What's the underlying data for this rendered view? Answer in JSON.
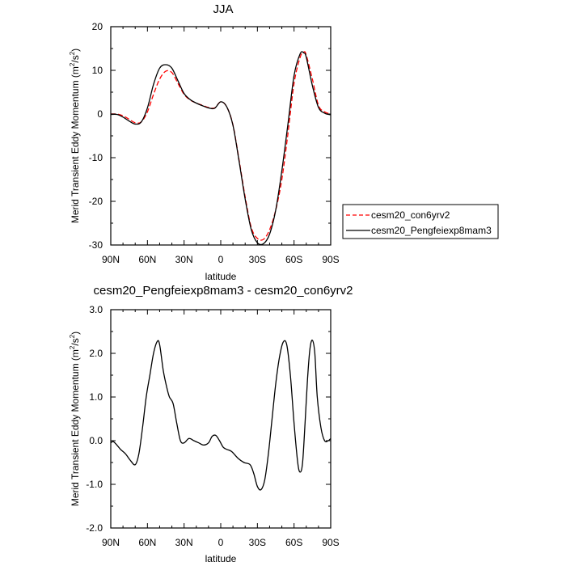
{
  "chart_data": [
    {
      "type": "line",
      "title": "JJA",
      "xlabel": "latitude",
      "ylabel_main": "Merid Transient Eddy Momentum (m",
      "ylabel_sup1": "2",
      "ylabel_mid": "/s",
      "ylabel_sup2": "2",
      "ylabel_end": ")",
      "xlim": [
        -90,
        90
      ],
      "ylim": [
        -30,
        20
      ],
      "xticks": [
        {
          "v": -90,
          "label": "90N"
        },
        {
          "v": -60,
          "label": "60N"
        },
        {
          "v": -30,
          "label": "30N"
        },
        {
          "v": 0,
          "label": "0"
        },
        {
          "v": 30,
          "label": "30S"
        },
        {
          "v": 60,
          "label": "60S"
        },
        {
          "v": 90,
          "label": "90S"
        }
      ],
      "yticks": [
        {
          "v": -30,
          "label": "-30"
        },
        {
          "v": -20,
          "label": "-20"
        },
        {
          "v": -10,
          "label": "-10"
        },
        {
          "v": 0,
          "label": "0"
        },
        {
          "v": 10,
          "label": "10"
        },
        {
          "v": 20,
          "label": "20"
        }
      ],
      "legend": {
        "placement": "right"
      },
      "series": [
        {
          "name": "cesm20_con6yrv2",
          "color": "#ff0000",
          "dash": true,
          "x": [
            -90,
            -85,
            -80,
            -75,
            -70,
            -65,
            -60,
            -55,
            -50,
            -45,
            -40,
            -35,
            -30,
            -25,
            -20,
            -15,
            -10,
            -5,
            0,
            5,
            10,
            15,
            20,
            25,
            30,
            35,
            40,
            45,
            50,
            55,
            60,
            65,
            68,
            70,
            75,
            80,
            85,
            90
          ],
          "y": [
            0.0,
            0.0,
            -0.4,
            -1.2,
            -2.0,
            -1.8,
            0.5,
            4.5,
            8.0,
            9.8,
            9.5,
            7.0,
            4.5,
            3.2,
            2.5,
            2.0,
            1.5,
            1.4,
            2.8,
            1.6,
            -2.5,
            -10.5,
            -19.0,
            -26.0,
            -28.5,
            -28.7,
            -26.5,
            -22.0,
            -15.0,
            -4.5,
            7.0,
            13.0,
            14.2,
            13.5,
            8.0,
            2.0,
            0.5,
            0.0
          ]
        },
        {
          "name": "cesm20_Pengfeiexp8mam3",
          "color": "#000000",
          "dash": false,
          "x": [
            -90,
            -85,
            -80,
            -75,
            -70,
            -65,
            -60,
            -55,
            -50,
            -45,
            -40,
            -35,
            -30,
            -25,
            -20,
            -15,
            -10,
            -5,
            0,
            5,
            10,
            15,
            20,
            25,
            30,
            35,
            40,
            45,
            50,
            55,
            60,
            65,
            68,
            70,
            75,
            80,
            85,
            90
          ],
          "y": [
            -0.1,
            -0.1,
            -0.7,
            -1.6,
            -2.3,
            -1.8,
            1.4,
            6.8,
            10.5,
            11.3,
            10.5,
            7.6,
            4.7,
            3.3,
            2.5,
            1.9,
            1.4,
            1.3,
            2.8,
            1.6,
            -2.6,
            -10.8,
            -19.5,
            -26.5,
            -29.5,
            -29.7,
            -27.5,
            -22.0,
            -13.0,
            -2.3,
            8.8,
            13.8,
            14.0,
            13.0,
            6.5,
            1.5,
            0.2,
            -0.2
          ]
        }
      ]
    },
    {
      "type": "line",
      "title": "cesm20_Pengfeiexp8mam3 - cesm20_con6yrv2",
      "xlabel": "latitude",
      "ylabel_main": "Merid Transient Eddy Momentum (m",
      "ylabel_sup1": "2",
      "ylabel_mid": "/s",
      "ylabel_sup2": "2",
      "ylabel_end": ")",
      "xlim": [
        -90,
        90
      ],
      "ylim": [
        -2.0,
        3.0
      ],
      "xticks": [
        {
          "v": -90,
          "label": "90N"
        },
        {
          "v": -60,
          "label": "60N"
        },
        {
          "v": -30,
          "label": "30N"
        },
        {
          "v": 0,
          "label": "0"
        },
        {
          "v": 30,
          "label": "30S"
        },
        {
          "v": 60,
          "label": "60S"
        },
        {
          "v": 90,
          "label": "90S"
        }
      ],
      "yticks": [
        {
          "v": -2.0,
          "label": "-2.0"
        },
        {
          "v": -1.0,
          "label": "-1.0"
        },
        {
          "v": 0.0,
          "label": "0.0"
        },
        {
          "v": 1.0,
          "label": "1.0"
        },
        {
          "v": 2.0,
          "label": "2.0"
        },
        {
          "v": 3.0,
          "label": "3.0"
        }
      ],
      "series": [
        {
          "color": "#000000",
          "dash": false,
          "x": [
            -90,
            -88,
            -85,
            -82,
            -78,
            -74,
            -70,
            -67,
            -64,
            -61,
            -58,
            -55,
            -52,
            -50,
            -47,
            -44,
            -42,
            -39,
            -36,
            -33,
            -30,
            -26,
            -22,
            -18,
            -14,
            -10,
            -7,
            -4,
            -1,
            2,
            5,
            9,
            14,
            19,
            24,
            27,
            30,
            33,
            36,
            39,
            42,
            45,
            48,
            51,
            54,
            57,
            60,
            63,
            65,
            67,
            69,
            71,
            73,
            75,
            77,
            79,
            82,
            85,
            88,
            90
          ],
          "y": [
            -0.05,
            -0.02,
            -0.1,
            -0.2,
            -0.3,
            -0.45,
            -0.55,
            -0.3,
            0.3,
            1.0,
            1.5,
            2.0,
            2.27,
            2.2,
            1.6,
            1.2,
            1.0,
            0.85,
            0.4,
            0.0,
            -0.05,
            0.05,
            0.0,
            -0.05,
            -0.1,
            -0.05,
            0.1,
            0.12,
            0.0,
            -0.15,
            -0.2,
            -0.25,
            -0.4,
            -0.5,
            -0.55,
            -0.75,
            -1.05,
            -1.12,
            -0.9,
            -0.3,
            0.5,
            1.3,
            1.9,
            2.25,
            2.2,
            1.5,
            0.4,
            -0.5,
            -0.72,
            -0.5,
            0.4,
            1.4,
            2.1,
            2.3,
            2.0,
            1.0,
            0.3,
            0.0,
            0.0,
            0.05
          ]
        }
      ]
    }
  ]
}
